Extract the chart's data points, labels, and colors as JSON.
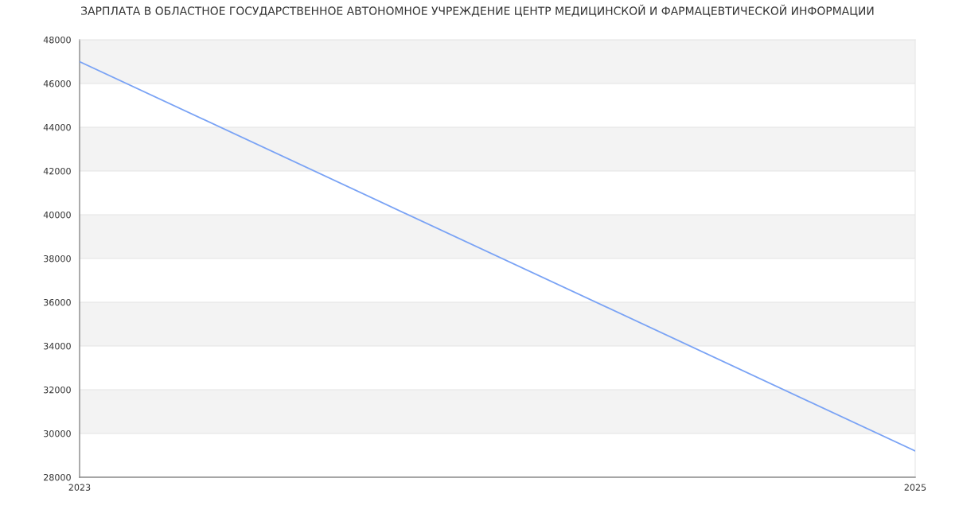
{
  "chart_data": {
    "type": "line",
    "title": "ЗАРПЛАТА В ОБЛАСТНОЕ ГОСУДАРСТВЕННОЕ АВТОНОМНОЕ УЧРЕЖДЕНИЕ ЦЕНТР МЕДИЦИНСКОЙ И ФАРМАЦЕВТИЧЕСКОЙ ИНФОРМАЦИИ",
    "x": [
      "2023",
      "2025"
    ],
    "series": [
      {
        "color": "#7aa3f5",
        "values": [
          47000,
          29200
        ]
      }
    ],
    "xlim": [
      "2023",
      "2025"
    ],
    "xticks": [
      "2023",
      "2025"
    ],
    "ylim": [
      28000,
      48000
    ],
    "yticks": [
      28000,
      30000,
      32000,
      34000,
      36000,
      38000,
      40000,
      42000,
      44000,
      46000,
      48000
    ],
    "bands": [
      {
        "axis": "y",
        "from": 30000,
        "to": 32000,
        "color": "#f3f3f3"
      },
      {
        "axis": "y",
        "from": 34000,
        "to": 36000,
        "color": "#f3f3f3"
      },
      {
        "axis": "y",
        "from": 38000,
        "to": 40000,
        "color": "#f3f3f3"
      },
      {
        "axis": "y",
        "from": 42000,
        "to": 44000,
        "color": "#f3f3f3"
      },
      {
        "axis": "y",
        "from": 46000,
        "to": 48000,
        "color": "#f3f3f3"
      }
    ],
    "grid": "y",
    "marker": "none",
    "line_style": "solid"
  }
}
